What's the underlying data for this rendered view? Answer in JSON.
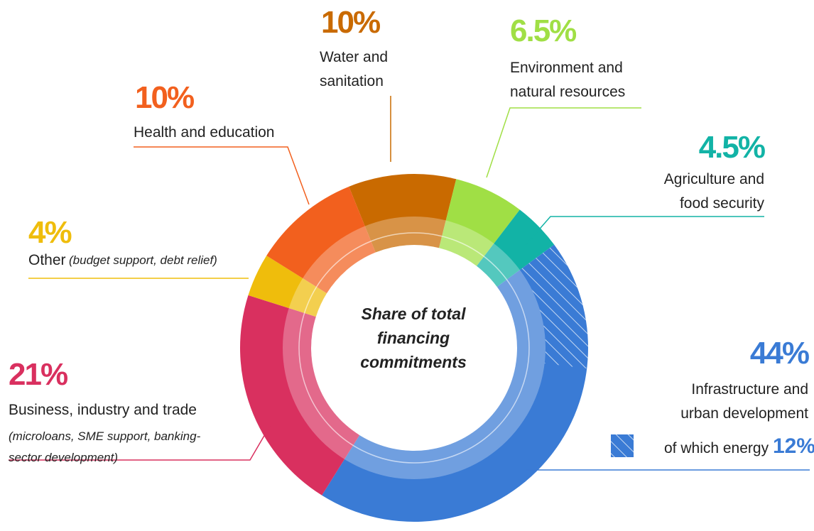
{
  "chart_data": {
    "type": "pie",
    "donut": true,
    "title": "Share of total financing commitments",
    "categories": [
      "Water and sanitation",
      "Environment and natural resources",
      "Agriculture and food security",
      "Infrastructure and urban development",
      "Business, industry and trade",
      "Other",
      "Health and education"
    ],
    "details": [
      null,
      null,
      null,
      null,
      "(microloans, SME support, banking-sector development)",
      "(budget support, debt relief)",
      null
    ],
    "values": [
      10,
      6.5,
      4.5,
      44,
      21,
      4,
      10
    ],
    "value_labels": [
      "10%",
      "6.5%",
      "4.5%",
      "44%",
      "21%",
      "4%",
      "10%"
    ],
    "colors": [
      "#c96a00",
      "#a0df45",
      "#12b3a6",
      "#3a7bd5",
      "#d9305f",
      "#efbd0c",
      "#f2601e"
    ],
    "sub_segment": {
      "label": "of which energy",
      "value": 12,
      "value_label": "12%",
      "of": 3
    }
  }
}
